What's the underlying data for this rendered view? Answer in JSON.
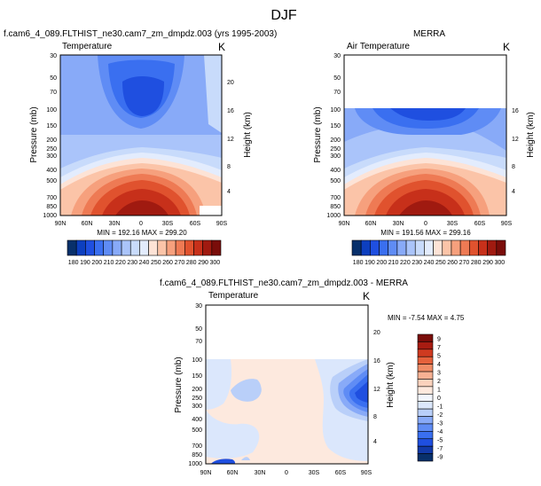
{
  "figure_title": "DJF",
  "colors": {
    "temp_scale": [
      "#08306b",
      "#0d3fbf",
      "#1f4fe0",
      "#3a6ff0",
      "#5f8cf5",
      "#88aaf8",
      "#aac4fa",
      "#c8dbfb",
      "#e3ecfd",
      "#fde3d6",
      "#fbc4a8",
      "#f6a07d",
      "#ee7a54",
      "#e0522e",
      "#c7301a",
      "#a01a10",
      "#7a0d0a"
    ],
    "diff_scale": [
      "#08306b",
      "#123aa8",
      "#1f4fe0",
      "#3a6ff0",
      "#5f8cf5",
      "#88aaf8",
      "#b9cff9",
      "#dbe7fc",
      "#f2f6fe",
      "#fde9de",
      "#fbd2bd",
      "#f7b193",
      "#f08c66",
      "#e5613c",
      "#cf3a20",
      "#a81c12",
      "#7a0d0a"
    ]
  },
  "chart_data": [
    {
      "type": "heatmap",
      "title": "f.cam6_4_089.FLTHIST_ne30.cam7_zm_dmpdz.003 (yrs 1995-2003)",
      "left_label": "Temperature",
      "right_label": "K",
      "ylabel": "Pressure (mb)",
      "y2label": "Height (km)",
      "x_ticks": [
        "90N",
        "60N",
        "30N",
        "0",
        "30S",
        "60S",
        "90S"
      ],
      "y_ticks": [
        "30",
        "50",
        "70",
        "100",
        "150",
        "200",
        "250",
        "300",
        "400",
        "500",
        "700",
        "850",
        "1000"
      ],
      "y2_ticks": [
        "20",
        "16",
        "12",
        "8",
        "4"
      ],
      "stats": "MIN = 192.16  MAX = 299.20",
      "min": 192.16,
      "max": 299.2
    },
    {
      "type": "heatmap",
      "title": "MERRA",
      "left_label": "Air Temperature",
      "right_label": "K",
      "ylabel": "Pressure (mb)",
      "y2label": "Height (km)",
      "x_ticks": [
        "90N",
        "60N",
        "30N",
        "0",
        "30S",
        "60S",
        "90S"
      ],
      "y_ticks": [
        "30",
        "50",
        "70",
        "100",
        "150",
        "200",
        "250",
        "300",
        "400",
        "500",
        "700",
        "850",
        "1000"
      ],
      "y2_ticks": [
        "16",
        "12",
        "8",
        "4"
      ],
      "stats": "MIN = 191.56  MAX = 299.16",
      "min": 191.56,
      "max": 299.16
    },
    {
      "type": "heatmap",
      "title": "f.cam6_4_089.FLTHIST_ne30.cam7_zm_dmpdz.003 - MERRA",
      "left_label": "Temperature",
      "right_label": "K",
      "ylabel": "Pressure (mb)",
      "y2label": "Height (km)",
      "x_ticks": [
        "90N",
        "60N",
        "30N",
        "0",
        "30S",
        "60S",
        "90S"
      ],
      "y_ticks": [
        "30",
        "50",
        "70",
        "100",
        "150",
        "200",
        "250",
        "300",
        "400",
        "500",
        "700",
        "850",
        "1000"
      ],
      "y2_ticks": [
        "20",
        "16",
        "12",
        "8",
        "4"
      ],
      "stats": "MIN = -7.54  MAX =  4.75",
      "min": -7.54,
      "max": 4.75
    }
  ],
  "colorbars": {
    "temperature_labels": [
      "180",
      "190",
      "200",
      "210",
      "220",
      "230",
      "240",
      "250",
      "260",
      "270",
      "280",
      "290",
      "300"
    ],
    "difference_labels": [
      "9",
      "7",
      "5",
      "4",
      "3",
      "2",
      "1",
      "0",
      "-1",
      "-2",
      "-3",
      "-4",
      "-5",
      "-7",
      "-9"
    ]
  }
}
